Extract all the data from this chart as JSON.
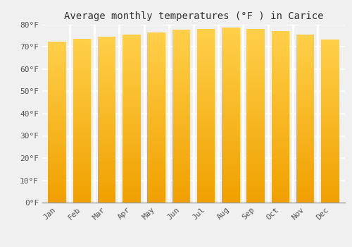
{
  "months": [
    "Jan",
    "Feb",
    "Mar",
    "Apr",
    "May",
    "Jun",
    "Jul",
    "Aug",
    "Sep",
    "Oct",
    "Nov",
    "Dec"
  ],
  "values": [
    72.3,
    73.6,
    74.7,
    75.7,
    76.6,
    77.7,
    78.1,
    78.6,
    78.0,
    77.2,
    75.7,
    73.4
  ],
  "title": "Average monthly temperatures (°F ) in Carice",
  "ylim": [
    0,
    80
  ],
  "yticks": [
    0,
    10,
    20,
    30,
    40,
    50,
    60,
    70,
    80
  ],
  "ytick_labels": [
    "0°F",
    "10°F",
    "20°F",
    "30°F",
    "40°F",
    "50°F",
    "60°F",
    "70°F",
    "80°F"
  ],
  "bar_color_top": "#FFD04A",
  "bar_color_bottom": "#F0A000",
  "background_color": "#f0f0f0",
  "grid_color": "#ffffff",
  "title_fontsize": 10,
  "tick_fontsize": 8,
  "bar_width": 0.72
}
